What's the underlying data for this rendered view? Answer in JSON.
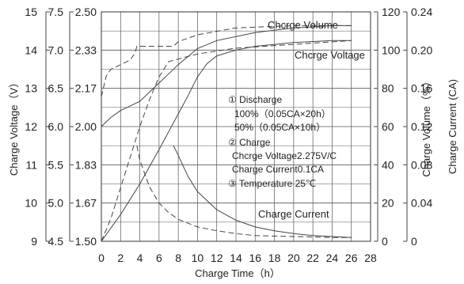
{
  "chart_data": {
    "type": "line",
    "xlabel": "Charge Time（h）",
    "x_ticks": [
      "0",
      "2",
      "4",
      "6",
      "8",
      "10",
      "12",
      "14",
      "16",
      "18",
      "20",
      "22",
      "24",
      "26",
      "28"
    ],
    "xlim": [
      0,
      28
    ],
    "left_axes": [
      {
        "label": "Charge Voltage（V）",
        "ticks": [
          "15",
          "14",
          "13",
          "12",
          "11",
          "10",
          "9"
        ],
        "range": [
          9,
          15
        ]
      },
      {
        "label": "",
        "ticks": [
          "7.5",
          "7.0",
          "6.5",
          "6.0",
          "5.5",
          "5.0",
          "4.5"
        ],
        "range": [
          4.5,
          7.5
        ]
      },
      {
        "label": "",
        "ticks": [
          "2.50",
          "2.33",
          "2.17",
          "2.00",
          "1.83",
          "1.67",
          "1.50"
        ],
        "range": [
          1.5,
          2.5
        ]
      }
    ],
    "right_axes": [
      {
        "label": "Charge Volume（%）",
        "ticks": [
          "120",
          "100",
          "80",
          "60",
          "40",
          "20",
          "0"
        ],
        "range": [
          0,
          120
        ]
      },
      {
        "label": "Charge Current (CA)",
        "ticks": [
          "0.24",
          "0.20",
          "0.16",
          "0.12",
          "0.08",
          "0.04",
          "0"
        ],
        "range": [
          0,
          0.24
        ]
      }
    ],
    "grid": true,
    "series": [
      {
        "name": "Chcrge Voltage",
        "style": "solid",
        "axis": "cell_voltage",
        "x": [
          0,
          1,
          2,
          3,
          4,
          5,
          6,
          7,
          8,
          10,
          12,
          16,
          20,
          24,
          26
        ],
        "y": [
          2.0,
          2.04,
          2.07,
          2.09,
          2.11,
          2.15,
          2.19,
          2.23,
          2.27,
          2.34,
          2.375,
          2.41,
          2.43,
          2.44,
          2.44
        ]
      },
      {
        "name": "Chcrge Volume",
        "style": "solid",
        "axis": "volume",
        "x": [
          0,
          2,
          4,
          6,
          7.5,
          9,
          10,
          11,
          12,
          14,
          16,
          20,
          24,
          26
        ],
        "y": [
          0,
          14,
          30,
          48,
          62,
          76,
          86,
          93,
          97,
          100,
          102,
          104,
          105,
          105
        ]
      },
      {
        "name": "Chcrge Volume",
        "style": "dashed",
        "axis": "volume",
        "x": [
          0,
          0.5,
          1,
          2,
          3,
          4,
          5,
          6,
          7,
          10,
          14,
          20,
          26
        ],
        "y": [
          0,
          6,
          12,
          28,
          44,
          60,
          74,
          86,
          94,
          98,
          101,
          103,
          105
        ]
      },
      {
        "name": "Chcrge Voltage",
        "style": "dashed",
        "axis": "cell_voltage",
        "x": [
          0,
          0.5,
          1,
          2,
          3,
          3.5,
          3.7,
          7.5,
          8,
          10,
          14,
          20,
          26
        ],
        "y": [
          2.13,
          2.22,
          2.25,
          2.27,
          2.29,
          2.32,
          2.35,
          2.35,
          2.37,
          2.4,
          2.43,
          2.44,
          2.44
        ]
      },
      {
        "name": "Charge Current",
        "style": "solid",
        "axis": "current",
        "x": [
          7.5,
          8,
          9,
          10,
          12,
          14,
          16,
          18,
          20,
          22,
          24,
          26
        ],
        "y": [
          0.1,
          0.09,
          0.068,
          0.052,
          0.033,
          0.022,
          0.015,
          0.011,
          0.008,
          0.006,
          0.005,
          0.004
        ]
      },
      {
        "name": "Charge Current",
        "style": "dashed",
        "axis": "current",
        "x": [
          3.7,
          4,
          5,
          6,
          7,
          8,
          10,
          12,
          14,
          16,
          20,
          24,
          26
        ],
        "y": [
          0.1,
          0.085,
          0.057,
          0.04,
          0.03,
          0.023,
          0.015,
          0.011,
          0.008,
          0.006,
          0.005,
          0.004,
          0.004
        ]
      }
    ],
    "annotations": {
      "volume_label": "Chcrge Volume",
      "voltage_label": "Chcrge Voltage",
      "current_label": "Charge Current",
      "notes": [
        "①  Discharge",
        "100%（0.05CA×20h）",
        "50%（0.05CA×10h）",
        "②  Charge",
        "Chcrge Voltage2.275V/C",
        "Charge Current0.1CA",
        "③  Temperature 25℃"
      ]
    }
  }
}
